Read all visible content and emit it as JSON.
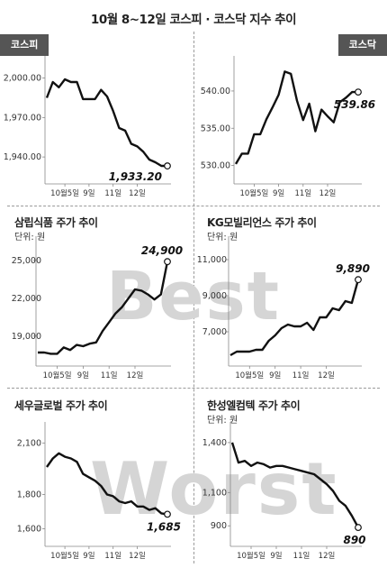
{
  "title": "10월 8~12일 코스피 · 코스닥 지수 추이",
  "tags": {
    "left": "코스피",
    "right": "코스닥"
  },
  "watermarks": {
    "best": "Best",
    "worst": "Worst"
  },
  "chart_data": [
    {
      "type": "line",
      "title": "",
      "unit": "",
      "x": [
        0,
        1,
        2,
        3,
        4,
        5,
        6,
        7,
        8,
        9,
        10,
        11,
        12,
        13,
        14,
        15,
        16,
        17,
        18,
        19,
        20
      ],
      "xticks": [
        3,
        7,
        11,
        15
      ],
      "xtick_labels": [
        "10월5일",
        "9일",
        "11일",
        "12일"
      ],
      "yticks": [
        1940,
        1970,
        2000
      ],
      "ytick_labels": [
        "1,940.00",
        "1,970.00",
        "2,000.00"
      ],
      "ylim": [
        1925,
        2010
      ],
      "values": [
        1985,
        1997,
        1993,
        1999,
        1997,
        1997,
        1984,
        1984,
        1984,
        1991,
        1986,
        1975,
        1962,
        1960,
        1950,
        1948,
        1944,
        1938,
        1936,
        1933.2,
        1933.2
      ],
      "end_label": "1,933.20",
      "end_label_side": "left"
    },
    {
      "type": "line",
      "title": "",
      "unit": "",
      "x": [
        0,
        1,
        2,
        3,
        4,
        5,
        6,
        7,
        8,
        9,
        10,
        11,
        12,
        13,
        14,
        15,
        16,
        17,
        18,
        19,
        20
      ],
      "xticks": [
        3,
        7,
        11,
        15
      ],
      "xtick_labels": [
        "10월5일",
        "9일",
        "11일",
        "12일"
      ],
      "yticks": [
        530,
        535,
        540
      ],
      "ytick_labels": [
        "530.00",
        "535.00",
        "540.00"
      ],
      "ylim": [
        528.5,
        543.5
      ],
      "values": [
        530.2,
        531.6,
        531.6,
        534.2,
        534.2,
        536.2,
        537.8,
        539.5,
        542.6,
        542.3,
        538.7,
        536.1,
        538.3,
        534.6,
        537.5,
        536.6,
        535.8,
        538.5,
        539.1,
        539.86,
        539.86
      ],
      "end_label": "539.86",
      "end_label_side": "below"
    },
    {
      "type": "line",
      "title": "삼립식품 주가 추이",
      "unit": "단위: 원",
      "x": [
        0,
        1,
        2,
        3,
        4,
        5,
        6,
        7,
        8,
        9,
        10,
        11,
        12,
        13,
        14,
        15,
        16,
        17,
        18,
        19,
        20
      ],
      "xticks": [
        3,
        7,
        11,
        15
      ],
      "xtick_labels": [
        "10월5일",
        "9일",
        "11일",
        "12일"
      ],
      "yticks": [
        19000,
        22000,
        25000
      ],
      "ytick_labels": [
        "19,000",
        "22,000",
        "25,000"
      ],
      "ylim": [
        17200,
        26200
      ],
      "values": [
        17700,
        17700,
        17600,
        17600,
        18100,
        17900,
        18300,
        18200,
        18400,
        18500,
        19400,
        20100,
        20800,
        21300,
        22000,
        22700,
        22600,
        22300,
        21900,
        22300,
        24900
      ],
      "end_label": "24,900",
      "end_label_side": "above"
    },
    {
      "type": "line",
      "title": "KG모빌리언스 주가 추이",
      "unit": "단위: 원",
      "x": [
        0,
        1,
        2,
        3,
        4,
        5,
        6,
        7,
        8,
        9,
        10,
        11,
        12,
        13,
        14,
        15,
        16,
        17,
        18,
        19,
        20
      ],
      "xticks": [
        3,
        7,
        11,
        15
      ],
      "xtick_labels": [
        "10월5일",
        "9일",
        "11일",
        "12일"
      ],
      "yticks": [
        7000,
        9000,
        11000
      ],
      "ytick_labels": [
        "7,000",
        "9,000",
        "11,000"
      ],
      "ylim": [
        5500,
        11800
      ],
      "values": [
        5700,
        5900,
        5900,
        5900,
        6000,
        6000,
        6500,
        6800,
        7200,
        7400,
        7300,
        7300,
        7500,
        7100,
        7800,
        7800,
        8300,
        8200,
        8700,
        8600,
        9890
      ],
      "end_label": "9,890",
      "end_label_side": "above"
    },
    {
      "type": "line",
      "title": "세우글로벌 주가 추이",
      "unit": "",
      "x": [
        0,
        1,
        2,
        3,
        4,
        5,
        6,
        7,
        8,
        9,
        10,
        11,
        12,
        13,
        14,
        15,
        16,
        17,
        18,
        19,
        20
      ],
      "xticks": [
        3,
        7,
        11,
        15
      ],
      "xtick_labels": [
        "10월5일",
        "9일",
        "11일",
        "12일"
      ],
      "yticks": [
        1600,
        1800,
        2100
      ],
      "ytick_labels": [
        "1,600",
        "1,800",
        "2,100"
      ],
      "ylim": [
        1540,
        2170
      ],
      "values": [
        1960,
        2010,
        2040,
        2020,
        2010,
        1990,
        1920,
        1900,
        1880,
        1850,
        1800,
        1790,
        1760,
        1750,
        1760,
        1730,
        1730,
        1710,
        1720,
        1690,
        1685
      ],
      "end_label": "1,685",
      "end_label_side": "below"
    },
    {
      "type": "line",
      "title": "한성엘컴텍 주가 추이",
      "unit": "단위: 원",
      "x": [
        0,
        1,
        2,
        3,
        4,
        5,
        6,
        7,
        8,
        9,
        10,
        11,
        12,
        13,
        14,
        15,
        16,
        17,
        18,
        19,
        20
      ],
      "xticks": [
        3,
        7,
        11,
        15
      ],
      "xtick_labels": [
        "10월5일",
        "9일",
        "11일",
        "12일"
      ],
      "yticks": [
        900,
        1100,
        1400
      ],
      "ytick_labels": [
        "900",
        "1,100",
        "1,400"
      ],
      "ylim": [
        820,
        1470
      ],
      "values": [
        1400,
        1280,
        1290,
        1260,
        1280,
        1270,
        1250,
        1260,
        1260,
        1250,
        1240,
        1230,
        1220,
        1210,
        1180,
        1150,
        1110,
        1050,
        1020,
        960,
        890
      ],
      "end_label": "890",
      "end_label_side": "below"
    }
  ]
}
